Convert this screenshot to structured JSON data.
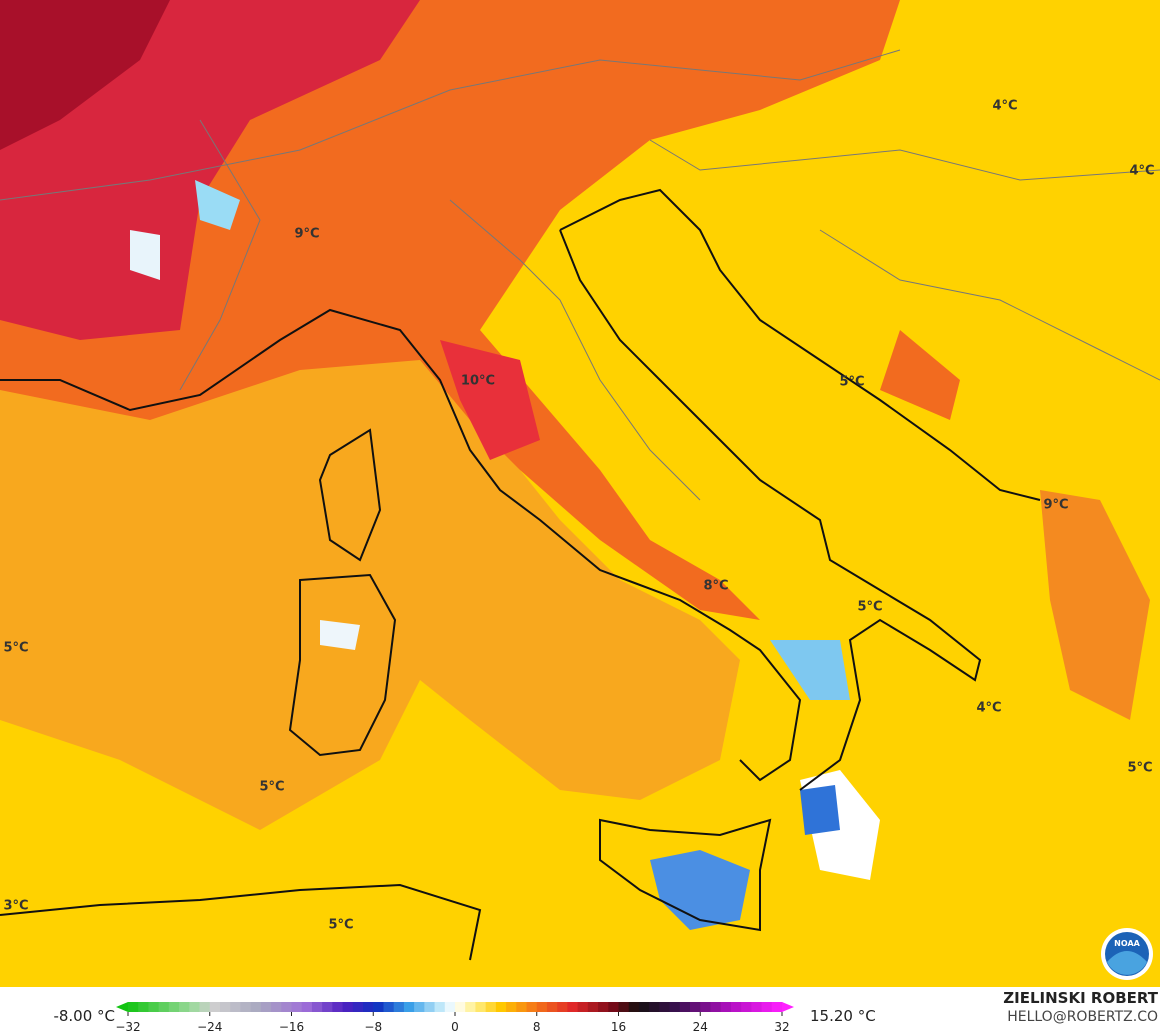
{
  "map": {
    "labels": [
      "4°C",
      "4°C",
      "9°C",
      "10°C",
      "5°C",
      "9°C",
      "5°C",
      "8°C",
      "5°C",
      "4°C",
      "5°C",
      "5°C",
      "3°C",
      "5°C"
    ],
    "colorbar": {
      "min_label": "-8.00 °C",
      "max_label": "15.20 °C",
      "ticks": [
        {
          "value": -32,
          "label": "−32"
        },
        {
          "value": -24,
          "label": "−24"
        },
        {
          "value": -16,
          "label": "−16"
        },
        {
          "value": -8,
          "label": "−8"
        },
        0,
        8,
        16,
        24,
        32
      ]
    },
    "credit": {
      "name": "ZIELINSKI ROBERT",
      "contact": "HELLO@ROBERTZ.CO"
    },
    "logo": "NOAA"
  }
}
